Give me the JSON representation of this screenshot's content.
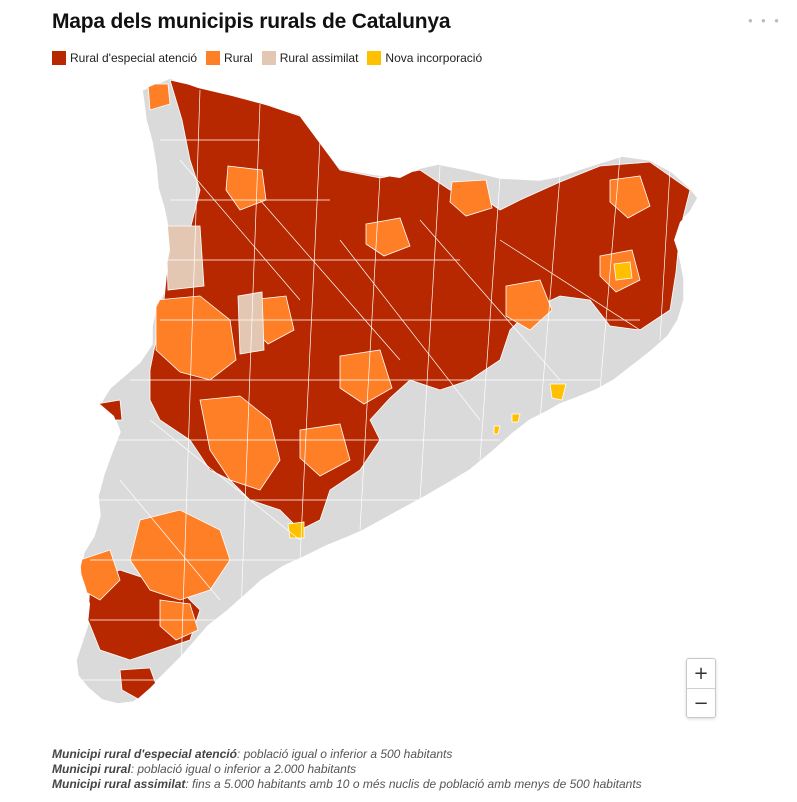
{
  "title": "Mapa dels municipis rurals de Catalunya",
  "legend": [
    {
      "label": "Rural d'especial atenció",
      "color": "#b82800"
    },
    {
      "label": "Rural",
      "color": "#ff7f27"
    },
    {
      "label": "Rural assimilat",
      "color": "#e3c7b2"
    },
    {
      "label": "Nova incorporació",
      "color": "#ffc000"
    }
  ],
  "map": {
    "region": "Catalunya",
    "base_color": "#dadada",
    "border_color": "#ffffff"
  },
  "zoom": {
    "in_label": "+",
    "out_label": "−"
  },
  "notes": [
    {
      "term": "Municipi rural d'especial atenció",
      "text": ": població igual o inferior a 500 habitants"
    },
    {
      "term": "Municipi rural",
      "text": ": població igual o inferior a 2.000 habitants"
    },
    {
      "term": "Municipi rural assimilat",
      "text": ": fins a 5.000 habitants amb 10 o més nuclis de població amb menys de 500 habitants"
    }
  ]
}
